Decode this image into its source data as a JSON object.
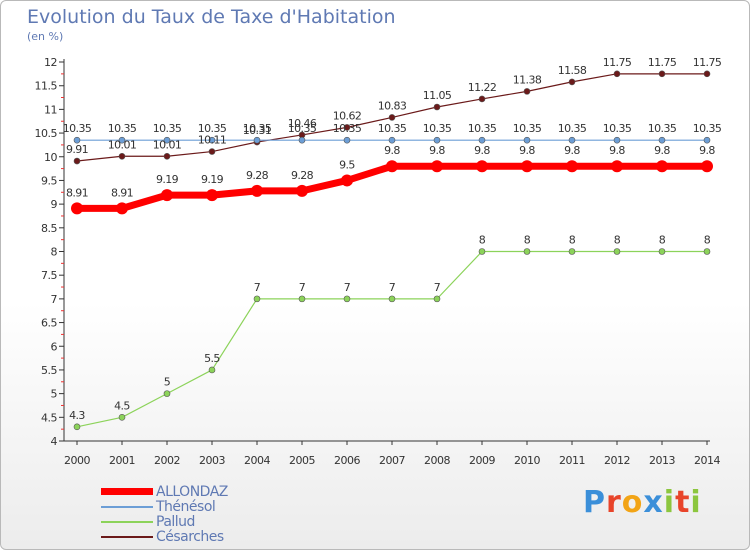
{
  "brand": {
    "letters": [
      {
        "ch": "P",
        "color": "#3b8fd9"
      },
      {
        "ch": "r",
        "color": "#e8442a"
      },
      {
        "ch": "o",
        "color": "#f2a416"
      },
      {
        "ch": "x",
        "color": "#3b8fd9"
      },
      {
        "ch": "i",
        "color": "#8cc63e"
      },
      {
        "ch": "t",
        "color": "#e8442a"
      },
      {
        "ch": "i",
        "color": "#8cc63e"
      }
    ]
  },
  "chart_data": {
    "type": "line",
    "title": "Evolution du Taux de Taxe d'Habitation",
    "subtitle": "(en %)",
    "x": [
      "2000",
      "2001",
      "2002",
      "2003",
      "2004",
      "2005",
      "2006",
      "2007",
      "2008",
      "2009",
      "2010",
      "2011",
      "2012",
      "2013",
      "2014"
    ],
    "ylim": [
      4,
      12
    ],
    "yticks": [
      "4",
      "4.5",
      "5",
      "5.5",
      "6",
      "6.5",
      "7",
      "7.5",
      "8",
      "8.5",
      "9",
      "9.5",
      "10",
      "10.5",
      "11",
      "11.5",
      "12"
    ],
    "grid": false,
    "legend_position": "bottom-left",
    "series": [
      {
        "name": "Césarches",
        "color": "#6b1a1a",
        "width": 1.2,
        "marker": 3,
        "values": [
          9.91,
          10.01,
          10.01,
          10.11,
          10.31,
          10.46,
          10.62,
          10.83,
          11.05,
          11.22,
          11.38,
          11.58,
          11.75,
          11.75,
          11.75
        ],
        "labels": [
          "9.91",
          "10.01",
          "10.01",
          "10.11",
          "10.31",
          "10.46",
          "10.62",
          "10.83",
          "11.05",
          "11.22",
          "11.38",
          "11.58",
          "11.75",
          "11.75",
          "11.75"
        ]
      },
      {
        "name": "Thénésol",
        "color": "#6c9ed6",
        "width": 1.2,
        "marker": 3,
        "values": [
          10.35,
          10.35,
          10.35,
          10.35,
          10.35,
          10.35,
          10.35,
          10.35,
          10.35,
          10.35,
          10.35,
          10.35,
          10.35,
          10.35,
          10.35
        ],
        "labels": [
          "10.35",
          "10.35",
          "10.35",
          "10.35",
          "10.35",
          "10.35",
          "10.35",
          "10.35",
          "10.35",
          "10.35",
          "10.35",
          "10.35",
          "10.35",
          "10.35",
          "10.35"
        ]
      },
      {
        "name": "Pallud",
        "color": "#8cd35a",
        "width": 1.2,
        "marker": 3,
        "values": [
          4.3,
          4.5,
          5,
          5.5,
          7,
          7,
          7,
          7,
          7,
          8,
          8,
          8,
          8,
          8,
          8
        ],
        "labels": [
          "4.3",
          "4.5",
          "5",
          "5.5",
          "7",
          "7",
          "7",
          "7",
          "7",
          "8",
          "8",
          "8",
          "8",
          "8",
          "8"
        ]
      },
      {
        "name": "ALLONDAZ",
        "color": "#ff0000",
        "width": 7,
        "marker": 6,
        "values": [
          8.91,
          8.91,
          9.19,
          9.19,
          9.28,
          9.28,
          9.5,
          9.8,
          9.8,
          9.8,
          9.8,
          9.8,
          9.8,
          9.8,
          9.8
        ],
        "labels": [
          "8.91",
          "8.91",
          "9.19",
          "9.19",
          "9.28",
          "9.28",
          "9.5",
          "9.8",
          "9.8",
          "9.8",
          "9.8",
          "9.8",
          "9.8",
          "9.8",
          "9.8"
        ]
      }
    ],
    "legend_order": [
      "ALLONDAZ",
      "Thénésol",
      "Pallud",
      "Césarches"
    ]
  }
}
